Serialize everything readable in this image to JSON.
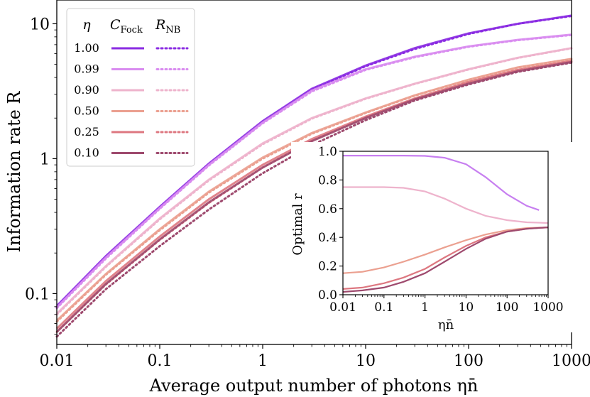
{
  "chart_data": [
    {
      "type": "line",
      "xscale": "log",
      "yscale": "log",
      "xlabel": "Average output number of photons ηn̄",
      "ylabel": "Information rate R",
      "xlim": [
        0.01,
        1000
      ],
      "ylim": [
        0.042,
        15
      ],
      "xticks": [
        "0.01",
        "0.1",
        "1",
        "10",
        "100",
        "1000"
      ],
      "yticks": [
        "0.1",
        "1",
        "10"
      ],
      "xtick_values": [
        0.01,
        0.1,
        1,
        10,
        100,
        1000
      ],
      "ytick_values": [
        0.1,
        1,
        10
      ],
      "legend": {
        "position": "top-left",
        "eta_header": "η",
        "fock_header": "C",
        "fock_sub": "Fock",
        "nb_header": "R",
        "nb_sub": "NB",
        "fock_style": "solid",
        "nb_style": "dotted"
      },
      "series": [
        {
          "eta": "1.00",
          "color": "#8a2be2",
          "x": [
            0.01,
            0.03,
            0.1,
            0.3,
            1,
            3,
            10,
            30,
            100,
            300,
            1000
          ],
          "fock": [
            0.081,
            0.19,
            0.44,
            0.92,
            1.9,
            3.3,
            4.9,
            6.6,
            8.5,
            10.0,
            11.5
          ],
          "nb": [
            0.079,
            0.185,
            0.43,
            0.9,
            1.85,
            3.25,
            4.85,
            6.5,
            8.4,
            10.0,
            11.4
          ]
        },
        {
          "eta": "0.99",
          "color": "#d98cf0",
          "x": [
            0.01,
            0.03,
            0.1,
            0.3,
            1,
            3,
            10,
            30,
            100,
            300,
            1000
          ],
          "fock": [
            0.079,
            0.185,
            0.43,
            0.9,
            1.85,
            3.2,
            4.6,
            5.7,
            6.8,
            7.6,
            8.3
          ],
          "nb": [
            0.078,
            0.182,
            0.425,
            0.89,
            1.83,
            3.15,
            4.55,
            5.65,
            6.75,
            7.55,
            8.25
          ]
        },
        {
          "eta": "0.90",
          "color": "#eeb3cc",
          "x": [
            0.01,
            0.03,
            0.1,
            0.3,
            1,
            3,
            10,
            30,
            100,
            300,
            1000
          ],
          "fock": [
            0.071,
            0.16,
            0.36,
            0.7,
            1.3,
            2.0,
            2.8,
            3.6,
            4.6,
            5.6,
            6.6
          ],
          "nb": [
            0.07,
            0.158,
            0.355,
            0.69,
            1.28,
            1.98,
            2.78,
            3.58,
            4.58,
            5.58,
            6.58
          ]
        },
        {
          "eta": "0.50",
          "color": "#eba090",
          "x": [
            0.01,
            0.03,
            0.1,
            0.3,
            1,
            3,
            10,
            30,
            100,
            300,
            1000
          ],
          "fock": [
            0.063,
            0.14,
            0.3,
            0.57,
            1.02,
            1.55,
            2.2,
            2.95,
            3.85,
            4.75,
            5.5
          ],
          "nb": [
            0.062,
            0.138,
            0.295,
            0.56,
            1.0,
            1.53,
            2.18,
            2.93,
            3.83,
            4.73,
            5.48
          ]
        },
        {
          "eta": "0.25",
          "color": "#dd7780",
          "x": [
            0.01,
            0.03,
            0.1,
            0.3,
            1,
            3,
            10,
            30,
            100,
            300,
            1000
          ],
          "fock": [
            0.055,
            0.124,
            0.265,
            0.5,
            0.9,
            1.4,
            2.05,
            2.8,
            3.7,
            4.55,
            5.3
          ],
          "nb": [
            0.052,
            0.117,
            0.25,
            0.47,
            0.86,
            1.36,
            2.02,
            2.78,
            3.68,
            4.53,
            5.28
          ]
        },
        {
          "eta": "0.10",
          "color": "#9e4a6e",
          "x": [
            0.01,
            0.03,
            0.1,
            0.3,
            1,
            3,
            10,
            30,
            100,
            300,
            1000
          ],
          "fock": [
            0.052,
            0.118,
            0.252,
            0.475,
            0.86,
            1.35,
            2.0,
            2.75,
            3.6,
            4.45,
            5.2
          ],
          "nb": [
            0.048,
            0.108,
            0.225,
            0.42,
            0.78,
            1.26,
            1.93,
            2.7,
            3.55,
            4.4,
            5.15
          ]
        }
      ]
    },
    {
      "type": "line",
      "role": "inset",
      "xscale": "log",
      "yscale": "linear",
      "xlabel": "ηn̄",
      "ylabel": "Optimal r",
      "xlim": [
        0.01,
        1000
      ],
      "ylim": [
        0.0,
        1.0
      ],
      "xticks": [
        "0.01",
        "0.1",
        "1",
        "10",
        "100",
        "1000"
      ],
      "yticks": [
        "0.0",
        "0.2",
        "0.4",
        "0.6",
        "0.8",
        "1.0"
      ],
      "xtick_values": [
        0.01,
        0.1,
        1,
        10,
        100,
        1000
      ],
      "ytick_values": [
        0.0,
        0.2,
        0.4,
        0.6,
        0.8,
        1.0
      ],
      "series": [
        {
          "eta": "0.99",
          "color": "#c77ff0",
          "x": [
            0.01,
            0.03,
            0.1,
            0.3,
            1,
            3,
            10,
            30,
            100,
            300,
            600
          ],
          "y": [
            0.97,
            0.97,
            0.97,
            0.97,
            0.968,
            0.955,
            0.91,
            0.82,
            0.7,
            0.62,
            0.59
          ]
        },
        {
          "eta": "0.90",
          "color": "#eeb3cc",
          "x": [
            0.01,
            0.03,
            0.1,
            0.3,
            1,
            3,
            10,
            30,
            100,
            300,
            1000
          ],
          "y": [
            0.75,
            0.75,
            0.75,
            0.745,
            0.72,
            0.67,
            0.6,
            0.55,
            0.52,
            0.505,
            0.5
          ]
        },
        {
          "eta": "0.50",
          "color": "#eba090",
          "x": [
            0.01,
            0.03,
            0.1,
            0.3,
            1,
            3,
            10,
            30,
            100,
            300,
            1000
          ],
          "y": [
            0.15,
            0.16,
            0.19,
            0.23,
            0.28,
            0.33,
            0.38,
            0.42,
            0.45,
            0.465,
            0.47
          ]
        },
        {
          "eta": "0.25",
          "color": "#dd7780",
          "x": [
            0.01,
            0.03,
            0.1,
            0.3,
            1,
            3,
            10,
            30,
            100,
            300,
            1000
          ],
          "y": [
            0.04,
            0.05,
            0.08,
            0.12,
            0.18,
            0.26,
            0.34,
            0.4,
            0.44,
            0.46,
            0.47
          ]
        },
        {
          "eta": "0.10",
          "color": "#9e4a6e",
          "x": [
            0.01,
            0.03,
            0.1,
            0.3,
            1,
            3,
            10,
            30,
            100,
            300,
            1000
          ],
          "y": [
            0.02,
            0.03,
            0.05,
            0.09,
            0.15,
            0.23,
            0.32,
            0.39,
            0.44,
            0.46,
            0.47
          ]
        }
      ]
    }
  ]
}
